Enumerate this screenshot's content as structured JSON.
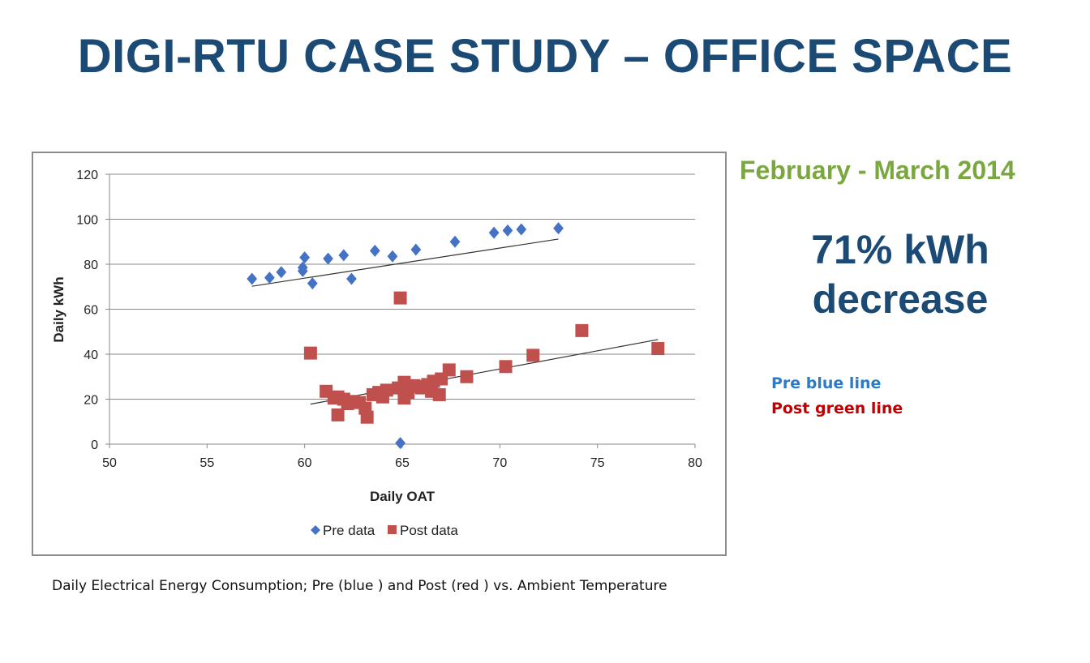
{
  "slide": {
    "title": "DIGI-RTU CASE STUDY – OFFICE SPACE",
    "period": "February - March 2014",
    "headline_line1": "71% kWh",
    "headline_line2": "decrease",
    "note_pre": "Pre blue line",
    "note_post": "Post green line",
    "caption": "Daily Electrical Energy Consumption; Pre (blue ) and Post (red ) vs. Ambient Temperature",
    "colors": {
      "title": "#1b4a74",
      "period": "#7aa740",
      "note_pre": "#2a7bc8",
      "note_post": "#c00000"
    }
  },
  "chart_data": {
    "type": "scatter",
    "title": "",
    "xlabel": "Daily OAT",
    "ylabel": "Daily kWh",
    "xlim": [
      50,
      80
    ],
    "ylim": [
      0,
      120
    ],
    "xticks": [
      50,
      55,
      60,
      65,
      70,
      75,
      80
    ],
    "yticks": [
      0,
      20,
      40,
      60,
      80,
      100,
      120
    ],
    "grid": "horizontal",
    "legend_position": "bottom",
    "series": [
      {
        "name": "Pre data",
        "marker": "diamond",
        "color": "#4472c4",
        "points": [
          [
            57.3,
            73.5
          ],
          [
            58.2,
            74
          ],
          [
            58.8,
            76.5
          ],
          [
            59.9,
            77
          ],
          [
            59.9,
            78.5
          ],
          [
            60.0,
            83
          ],
          [
            60.4,
            71.5
          ],
          [
            61.2,
            82.5
          ],
          [
            62.0,
            84
          ],
          [
            62.4,
            73.5
          ],
          [
            63.6,
            86
          ],
          [
            64.5,
            83.5
          ],
          [
            65.7,
            86.5
          ],
          [
            67.7,
            90
          ],
          [
            69.7,
            94
          ],
          [
            70.4,
            95
          ],
          [
            71.1,
            95.5
          ],
          [
            73.0,
            96
          ],
          [
            64.9,
            0.5
          ]
        ],
        "trendline": [
          [
            57.3,
            70.2
          ],
          [
            73.0,
            91.2
          ]
        ]
      },
      {
        "name": "Post data",
        "marker": "square",
        "color": "#c0504d",
        "points": [
          [
            60.3,
            40.5
          ],
          [
            64.9,
            65
          ],
          [
            74.2,
            50.5
          ],
          [
            78.1,
            42.5
          ],
          [
            71.7,
            39.5
          ],
          [
            70.3,
            34.5
          ],
          [
            68.3,
            30
          ],
          [
            67.4,
            33
          ],
          [
            67.0,
            29
          ],
          [
            66.6,
            28
          ],
          [
            66.3,
            26.5
          ],
          [
            66.0,
            25
          ],
          [
            65.6,
            26
          ],
          [
            65.3,
            23
          ],
          [
            65.1,
            27.5
          ],
          [
            64.8,
            25
          ],
          [
            64.2,
            24
          ],
          [
            64.0,
            21
          ],
          [
            63.8,
            23
          ],
          [
            63.5,
            22
          ],
          [
            63.1,
            16
          ],
          [
            62.8,
            18.5
          ],
          [
            62.5,
            19
          ],
          [
            62.2,
            18
          ],
          [
            62.0,
            20
          ],
          [
            61.7,
            21
          ],
          [
            61.5,
            20.5
          ],
          [
            61.1,
            23.5
          ],
          [
            61.7,
            13
          ],
          [
            63.2,
            12
          ],
          [
            65.1,
            20.5
          ],
          [
            66.9,
            22
          ],
          [
            66.5,
            23.5
          ],
          [
            65.7,
            25.5
          ]
        ],
        "trendline": [
          [
            60.3,
            17.8
          ],
          [
            78.1,
            46.5
          ]
        ]
      }
    ]
  }
}
